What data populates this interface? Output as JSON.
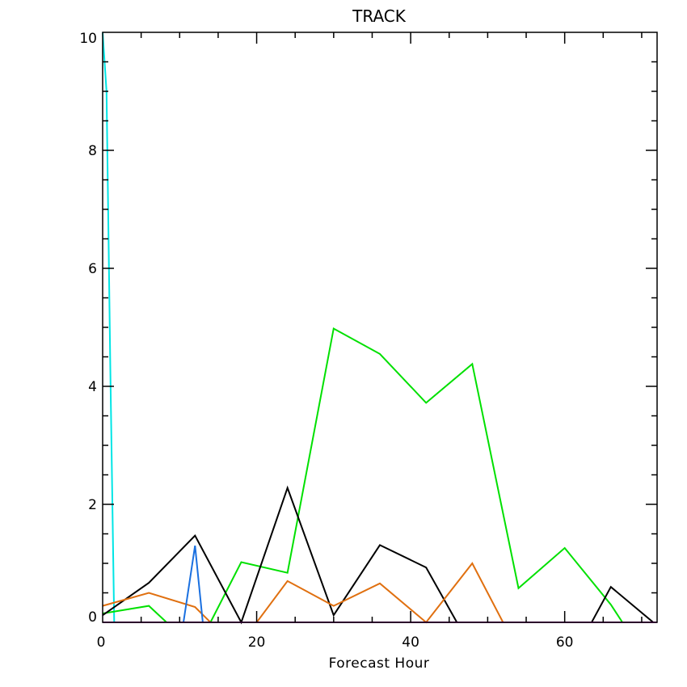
{
  "chart_data": {
    "type": "line",
    "title": "TRACK",
    "xlabel": "Forecast Hour",
    "ylabel": "",
    "xlim": [
      0,
      72
    ],
    "ylim": [
      0,
      10
    ],
    "x_ticks": [
      0,
      20,
      40,
      60
    ],
    "y_ticks": [
      0,
      2,
      4,
      6,
      8,
      10
    ],
    "x_tick_labels": [
      "0",
      "20",
      "40",
      "60"
    ],
    "y_tick_labels": [
      "0",
      "2",
      "4",
      "6",
      "8",
      "10"
    ],
    "grid": false,
    "series": [
      {
        "color": "#00e5e5",
        "x": [
          0,
          0.5,
          1,
          1.5
        ],
        "y": [
          10.0,
          9.0,
          4.3,
          0.0
        ]
      },
      {
        "color": "#00e000",
        "x": [
          0,
          6,
          8.3,
          14,
          18,
          24,
          30,
          36,
          42,
          48,
          54,
          60,
          66,
          67.5
        ],
        "y": [
          0.15,
          0.28,
          0.0,
          0.0,
          1.02,
          0.84,
          4.98,
          4.55,
          3.72,
          4.38,
          0.58,
          1.26,
          0.3,
          0.0
        ]
      },
      {
        "color": "#000000",
        "x": [
          0,
          6,
          12,
          18,
          24,
          30,
          36,
          42,
          46,
          63.5,
          66,
          71.5
        ],
        "y": [
          0.12,
          0.67,
          1.47,
          0.0,
          2.28,
          0.12,
          1.31,
          0.93,
          0.0,
          0.0,
          0.6,
          0.0
        ]
      },
      {
        "color": "#e07010",
        "x": [
          0,
          6,
          12,
          14,
          20,
          24,
          30,
          36,
          42,
          48,
          52
        ],
        "y": [
          0.28,
          0.5,
          0.26,
          0.0,
          0.0,
          0.7,
          0.28,
          0.66,
          0.0,
          1.0,
          0.0
        ]
      },
      {
        "color": "#1a70e0",
        "x": [
          10.5,
          12,
          13
        ],
        "y": [
          0.0,
          1.3,
          0.0
        ]
      },
      {
        "color": "#b000b0",
        "x": [
          0,
          72
        ],
        "y": [
          0.0,
          0.0
        ]
      }
    ]
  }
}
